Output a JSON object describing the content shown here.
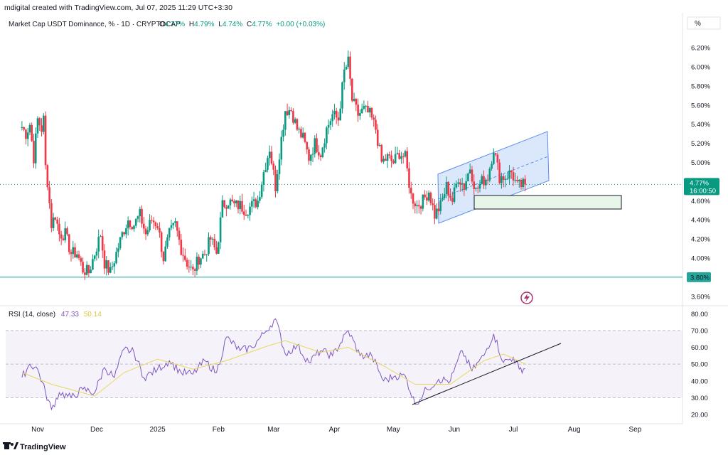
{
  "header": {
    "created_by": "mdigital created with TradingView.com, Jul 07, 2025 11:29 UTC+3:30",
    "percent_toggle": "%"
  },
  "legend": {
    "symbol": "Market Cap USDT Dominance, % · 1D · CRYPTOCAP",
    "o_label": "O",
    "o_value": "4.77%",
    "h_label": "H",
    "h_value": "4.79%",
    "l_label": "L",
    "l_value": "4.74%",
    "c_label": "C",
    "c_value": "4.77%",
    "change": "+0.00 (+0.03%)"
  },
  "price_axis": {
    "ticks": [
      "6.20%",
      "6.00%",
      "5.80%",
      "5.60%",
      "5.40%",
      "5.20%",
      "5.00%",
      "4.60%",
      "4.40%",
      "4.20%",
      "4.00%",
      "3.60%"
    ],
    "current_label": "4.77%",
    "countdown": "16:00:50",
    "support_label": "3.80%"
  },
  "rsi": {
    "label": "RSI (14, close)",
    "rsi_value": "47.33",
    "ma_value": "50.14",
    "ticks": [
      "80.00",
      "70.00",
      "60.00",
      "50.00",
      "40.00",
      "30.00",
      "20.00"
    ]
  },
  "time_axis": {
    "labels": [
      "Nov",
      "Dec",
      "2025",
      "Feb",
      "Mar",
      "Apr",
      "May",
      "Jun",
      "Jul",
      "Aug",
      "Sep"
    ]
  },
  "footer": {
    "brand": "TradingView"
  },
  "colors": {
    "up": "#089981",
    "down": "#f23645",
    "rsi": "#7e57c2",
    "rsi_ma": "#e6d85a",
    "channel_fill": "#cfe0fb",
    "channel_line": "#5b8def",
    "box_fill": "#e8f5e9",
    "support": "#26a69a"
  },
  "chart_data": {
    "type": "candlestick",
    "title": "Market Cap USDT Dominance, % · 1D · CRYPTOCAP",
    "y_unit": "%",
    "ylim": [
      3.5,
      6.3
    ],
    "current_price": 4.77,
    "horizontal_support": 3.8,
    "price_series": [
      {
        "x": "2024-10-24",
        "close": 5.37
      },
      {
        "x": "2024-10-26",
        "close": 5.3
      },
      {
        "x": "2024-10-28",
        "close": 5.4
      },
      {
        "x": "2024-10-30",
        "close": 5.05
      },
      {
        "x": "2024-11-01",
        "close": 5.45
      },
      {
        "x": "2024-11-03",
        "close": 5.35
      },
      {
        "x": "2024-11-04",
        "close": 5.45
      },
      {
        "x": "2024-11-05",
        "close": 4.95
      },
      {
        "x": "2024-11-06",
        "close": 4.8
      },
      {
        "x": "2024-11-08",
        "close": 4.35
      },
      {
        "x": "2024-11-10",
        "close": 4.45
      },
      {
        "x": "2024-11-12",
        "close": 4.25
      },
      {
        "x": "2024-11-15",
        "close": 4.25
      },
      {
        "x": "2024-11-18",
        "close": 4.05
      },
      {
        "x": "2024-11-21",
        "close": 4.05
      },
      {
        "x": "2024-11-24",
        "close": 3.88
      },
      {
        "x": "2024-11-27",
        "close": 3.85
      },
      {
        "x": "2024-11-30",
        "close": 4.05
      },
      {
        "x": "2024-12-03",
        "close": 4.25
      },
      {
        "x": "2024-12-05",
        "close": 3.95
      },
      {
        "x": "2024-12-08",
        "close": 3.85
      },
      {
        "x": "2024-12-11",
        "close": 4.05
      },
      {
        "x": "2024-12-14",
        "close": 4.25
      },
      {
        "x": "2024-12-17",
        "close": 4.4
      },
      {
        "x": "2024-12-20",
        "close": 4.35
      },
      {
        "x": "2024-12-23",
        "close": 4.45
      },
      {
        "x": "2024-12-26",
        "close": 4.25
      },
      {
        "x": "2024-12-29",
        "close": 4.4
      },
      {
        "x": "2025-01-01",
        "close": 4.35
      },
      {
        "x": "2025-01-04",
        "close": 4.0
      },
      {
        "x": "2025-01-07",
        "close": 4.25
      },
      {
        "x": "2025-01-10",
        "close": 4.35
      },
      {
        "x": "2025-01-13",
        "close": 4.1
      },
      {
        "x": "2025-01-16",
        "close": 3.95
      },
      {
        "x": "2025-01-19",
        "close": 3.85
      },
      {
        "x": "2025-01-22",
        "close": 4.0
      },
      {
        "x": "2025-01-25",
        "close": 4.05
      },
      {
        "x": "2025-01-28",
        "close": 4.2
      },
      {
        "x": "2025-01-31",
        "close": 4.05
      },
      {
        "x": "2025-02-03",
        "close": 4.55
      },
      {
        "x": "2025-02-06",
        "close": 4.6
      },
      {
        "x": "2025-02-09",
        "close": 4.55
      },
      {
        "x": "2025-02-12",
        "close": 4.55
      },
      {
        "x": "2025-02-15",
        "close": 4.5
      },
      {
        "x": "2025-02-18",
        "close": 4.55
      },
      {
        "x": "2025-02-21",
        "close": 4.6
      },
      {
        "x": "2025-02-24",
        "close": 4.9
      },
      {
        "x": "2025-02-27",
        "close": 5.15
      },
      {
        "x": "2025-03-02",
        "close": 4.75
      },
      {
        "x": "2025-03-04",
        "close": 5.1
      },
      {
        "x": "2025-03-07",
        "close": 5.55
      },
      {
        "x": "2025-03-10",
        "close": 5.55
      },
      {
        "x": "2025-03-13",
        "close": 5.35
      },
      {
        "x": "2025-03-16",
        "close": 5.25
      },
      {
        "x": "2025-03-19",
        "close": 5.05
      },
      {
        "x": "2025-03-22",
        "close": 5.2
      },
      {
        "x": "2025-03-25",
        "close": 5.1
      },
      {
        "x": "2025-03-28",
        "close": 5.35
      },
      {
        "x": "2025-03-31",
        "close": 5.5
      },
      {
        "x": "2025-04-03",
        "close": 5.45
      },
      {
        "x": "2025-04-06",
        "close": 5.95
      },
      {
        "x": "2025-04-08",
        "close": 6.05
      },
      {
        "x": "2025-04-10",
        "close": 5.65
      },
      {
        "x": "2025-04-13",
        "close": 5.5
      },
      {
        "x": "2025-04-16",
        "close": 5.55
      },
      {
        "x": "2025-04-19",
        "close": 5.5
      },
      {
        "x": "2025-04-22",
        "close": 5.35
      },
      {
        "x": "2025-04-25",
        "close": 5.0
      },
      {
        "x": "2025-04-28",
        "close": 5.05
      },
      {
        "x": "2025-05-01",
        "close": 5.0
      },
      {
        "x": "2025-05-04",
        "close": 5.1
      },
      {
        "x": "2025-05-07",
        "close": 5.05
      },
      {
        "x": "2025-05-10",
        "close": 4.65
      },
      {
        "x": "2025-05-13",
        "close": 4.55
      },
      {
        "x": "2025-05-16",
        "close": 4.6
      },
      {
        "x": "2025-05-19",
        "close": 4.7
      },
      {
        "x": "2025-05-22",
        "close": 4.45
      },
      {
        "x": "2025-05-25",
        "close": 4.55
      },
      {
        "x": "2025-05-28",
        "close": 4.75
      },
      {
        "x": "2025-05-31",
        "close": 4.6
      },
      {
        "x": "2025-06-03",
        "close": 4.85
      },
      {
        "x": "2025-06-06",
        "close": 4.75
      },
      {
        "x": "2025-06-09",
        "close": 4.95
      },
      {
        "x": "2025-06-12",
        "close": 4.7
      },
      {
        "x": "2025-06-15",
        "close": 4.8
      },
      {
        "x": "2025-06-18",
        "close": 4.85
      },
      {
        "x": "2025-06-21",
        "close": 5.15
      },
      {
        "x": "2025-06-24",
        "close": 4.85
      },
      {
        "x": "2025-06-27",
        "close": 4.85
      },
      {
        "x": "2025-06-30",
        "close": 4.9
      },
      {
        "x": "2025-07-03",
        "close": 4.75
      },
      {
        "x": "2025-07-07",
        "close": 4.77
      }
    ],
    "rsi": {
      "name": "RSI (14, close)",
      "ylim": [
        20,
        80
      ],
      "bands": [
        30,
        50,
        70
      ],
      "current": 47.33,
      "ma_current": 50.14,
      "values": [
        {
          "x": "2024-10-24",
          "y": 42
        },
        {
          "x": "2024-10-28",
          "y": 50
        },
        {
          "x": "2024-11-01",
          "y": 47
        },
        {
          "x": "2024-11-05",
          "y": 33
        },
        {
          "x": "2024-11-08",
          "y": 23
        },
        {
          "x": "2024-11-12",
          "y": 33
        },
        {
          "x": "2024-11-18",
          "y": 30
        },
        {
          "x": "2024-11-24",
          "y": 35
        },
        {
          "x": "2024-11-30",
          "y": 33
        },
        {
          "x": "2024-12-05",
          "y": 48
        },
        {
          "x": "2024-12-10",
          "y": 42
        },
        {
          "x": "2024-12-15",
          "y": 59
        },
        {
          "x": "2024-12-20",
          "y": 57
        },
        {
          "x": "2024-12-25",
          "y": 42
        },
        {
          "x": "2025-01-01",
          "y": 47
        },
        {
          "x": "2025-01-07",
          "y": 52
        },
        {
          "x": "2025-01-13",
          "y": 45
        },
        {
          "x": "2025-01-19",
          "y": 44
        },
        {
          "x": "2025-01-25",
          "y": 52
        },
        {
          "x": "2025-01-31",
          "y": 45
        },
        {
          "x": "2025-02-05",
          "y": 66
        },
        {
          "x": "2025-02-12",
          "y": 58
        },
        {
          "x": "2025-02-18",
          "y": 60
        },
        {
          "x": "2025-02-24",
          "y": 68
        },
        {
          "x": "2025-03-02",
          "y": 77
        },
        {
          "x": "2025-03-07",
          "y": 56
        },
        {
          "x": "2025-03-13",
          "y": 61
        },
        {
          "x": "2025-03-19",
          "y": 51
        },
        {
          "x": "2025-03-25",
          "y": 58
        },
        {
          "x": "2025-03-31",
          "y": 55
        },
        {
          "x": "2025-04-08",
          "y": 70
        },
        {
          "x": "2025-04-14",
          "y": 55
        },
        {
          "x": "2025-04-20",
          "y": 55
        },
        {
          "x": "2025-04-26",
          "y": 40
        },
        {
          "x": "2025-05-02",
          "y": 43
        },
        {
          "x": "2025-05-07",
          "y": 43
        },
        {
          "x": "2025-05-12",
          "y": 26
        },
        {
          "x": "2025-05-18",
          "y": 35
        },
        {
          "x": "2025-05-24",
          "y": 41
        },
        {
          "x": "2025-05-30",
          "y": 40
        },
        {
          "x": "2025-06-05",
          "y": 58
        },
        {
          "x": "2025-06-10",
          "y": 46
        },
        {
          "x": "2025-06-16",
          "y": 55
        },
        {
          "x": "2025-06-21",
          "y": 68
        },
        {
          "x": "2025-06-26",
          "y": 51
        },
        {
          "x": "2025-07-01",
          "y": 54
        },
        {
          "x": "2025-07-04",
          "y": 47
        },
        {
          "x": "2025-07-07",
          "y": 47.33
        }
      ],
      "ma_values": [
        {
          "x": "2024-10-24",
          "y": 45
        },
        {
          "x": "2024-11-08",
          "y": 38
        },
        {
          "x": "2024-11-30",
          "y": 31
        },
        {
          "x": "2024-12-15",
          "y": 45
        },
        {
          "x": "2025-01-01",
          "y": 53
        },
        {
          "x": "2025-01-19",
          "y": 47
        },
        {
          "x": "2025-02-05",
          "y": 52
        },
        {
          "x": "2025-02-24",
          "y": 60
        },
        {
          "x": "2025-03-07",
          "y": 64
        },
        {
          "x": "2025-03-25",
          "y": 57
        },
        {
          "x": "2025-04-08",
          "y": 60
        },
        {
          "x": "2025-04-26",
          "y": 49
        },
        {
          "x": "2025-05-12",
          "y": 38
        },
        {
          "x": "2025-05-30",
          "y": 38
        },
        {
          "x": "2025-06-16",
          "y": 52
        },
        {
          "x": "2025-06-26",
          "y": 56
        },
        {
          "x": "2025-07-07",
          "y": 50.14
        }
      ]
    },
    "x_axis_labels": [
      "Nov",
      "Dec",
      "2025",
      "Feb",
      "Mar",
      "Apr",
      "May",
      "Jun",
      "Jul",
      "Aug",
      "Sep"
    ]
  }
}
